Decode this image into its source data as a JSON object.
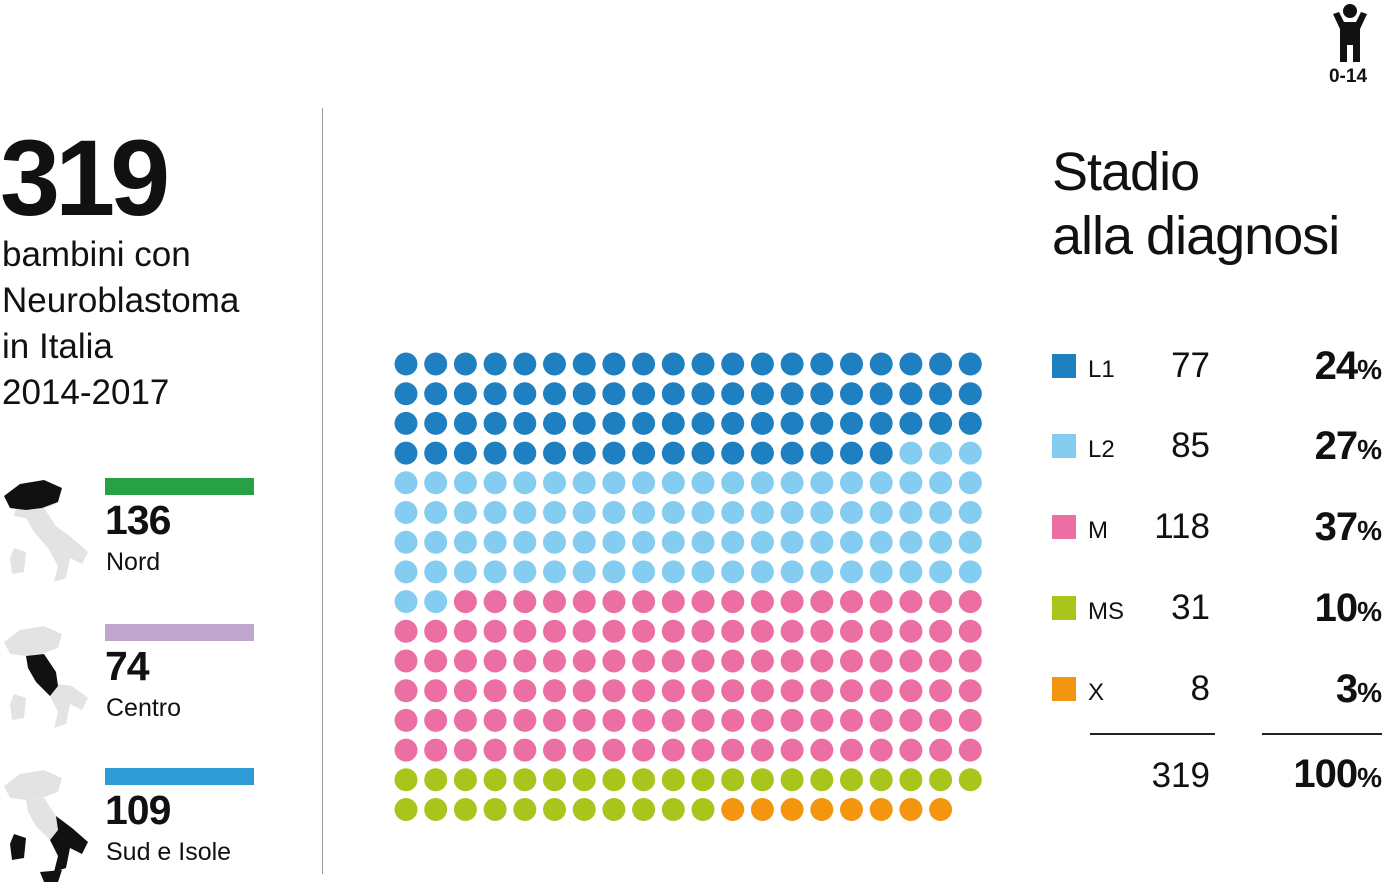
{
  "age_group": {
    "label": "0-14",
    "icon": "child-icon"
  },
  "summary": {
    "total": "319",
    "description": [
      "bambini con",
      "Neuroblastoma",
      "in Italia",
      "2014-2017"
    ]
  },
  "regions": [
    {
      "name": "Nord",
      "count": "136",
      "color": "#27a046"
    },
    {
      "name": "Centro",
      "count": "74",
      "color": "#c0a6cf"
    },
    {
      "name": "Sud e Isole",
      "count": "109",
      "color": "#2e9bd6"
    }
  ],
  "chart_data": {
    "type": "waffle",
    "title": [
      "Stadio",
      "alla diagnosi"
    ],
    "columns": 20,
    "series": [
      {
        "name": "L1",
        "value": 77,
        "percent": "24",
        "color": "#1e7fc1"
      },
      {
        "name": "L2",
        "value": 85,
        "percent": "27",
        "color": "#85cdf0"
      },
      {
        "name": "M",
        "value": 118,
        "percent": "37",
        "color": "#eb6fa3"
      },
      {
        "name": "MS",
        "value": 31,
        "percent": "10",
        "color": "#a7c51b"
      },
      {
        "name": "X",
        "value": 8,
        "percent": "3",
        "color": "#f3950f"
      }
    ],
    "total": {
      "value": "319",
      "percent": "100"
    },
    "percent_symbol": "%"
  }
}
